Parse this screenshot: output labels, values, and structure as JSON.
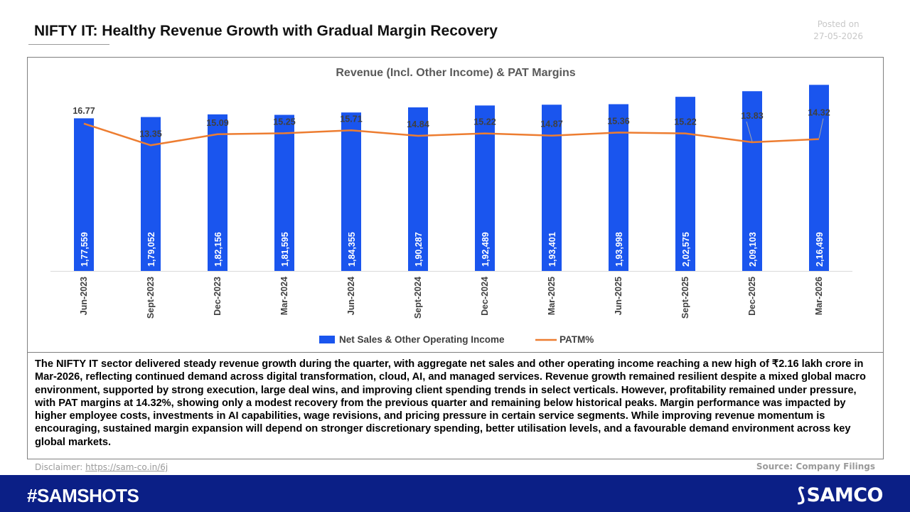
{
  "header": {
    "title": "NIFTY IT: Healthy Revenue Growth with Gradual Margin Recovery",
    "posted_label": "Posted on",
    "posted_date": "27-05-2026"
  },
  "chart_data": {
    "type": "bar",
    "title": "Revenue (Incl. Other Income) &  PAT Margins",
    "categories": [
      "Jun-2023",
      "Sept-2023",
      "Dec-2023",
      "Mar-2024",
      "Jun-2024",
      "Sept-2024",
      "Dec-2024",
      "Mar-2025",
      "Jun-2025",
      "Sept-2025",
      "Dec-2025",
      "Mar-2026"
    ],
    "series": [
      {
        "name": "Net Sales & Other Operating Income",
        "type": "bar",
        "values": [
          177559,
          179052,
          182156,
          181595,
          184355,
          190287,
          192489,
          193401,
          193998,
          202575,
          209103,
          216499
        ],
        "labels": [
          "1,77,559",
          "1,79,052",
          "1,82,156",
          "1,81,595",
          "1,84,355",
          "1,90,287",
          "1,92,489",
          "1,93,401",
          "1,93,998",
          "2,02,575",
          "2,09,103",
          "2,16,499"
        ]
      },
      {
        "name": "PATM%",
        "type": "line",
        "values": [
          16.77,
          13.35,
          15.09,
          15.25,
          15.71,
          14.84,
          15.22,
          14.87,
          15.36,
          15.22,
          13.83,
          14.32
        ],
        "labels": [
          "16.77",
          "13.35",
          "15.09",
          "15.25",
          "15.71",
          "14.84",
          "15.22",
          "14.87",
          "15.36",
          "15.22",
          "13.83",
          "14.32"
        ]
      }
    ],
    "colors": {
      "bar": "#1a55ee",
      "line": "#ed7d31"
    },
    "legend": "bottom",
    "grid": false
  },
  "description": "The NIFTY IT sector delivered steady revenue growth during the quarter, with aggregate net sales and other operating income reaching a new high of ₹2.16 lakh crore in Mar-2026, reflecting continued demand across digital transformation, cloud, AI, and managed services. Revenue growth remained resilient despite a mixed global macro environment, supported by strong execution, large deal wins, and improving client spending trends in select verticals. However, profitability remained under pressure, with PAT margins at 14.32%, showing only a modest recovery from the previous quarter and remaining below historical peaks. Margin performance was impacted by higher employee costs, investments in AI capabilities, wage revisions, and pricing pressure in certain service segments. While improving revenue momentum is encouraging, sustained margin expansion will depend on stronger discretionary spending, better utilisation levels, and a favourable demand environment across key global markets.",
  "footer": {
    "disclaimer_label": "Disclaimer:",
    "disclaimer_link": "https://sam-co.in/6j",
    "source": "Source: Company Filings",
    "hashtag": "#SAMSHOTS",
    "brand": "SAMCO"
  }
}
